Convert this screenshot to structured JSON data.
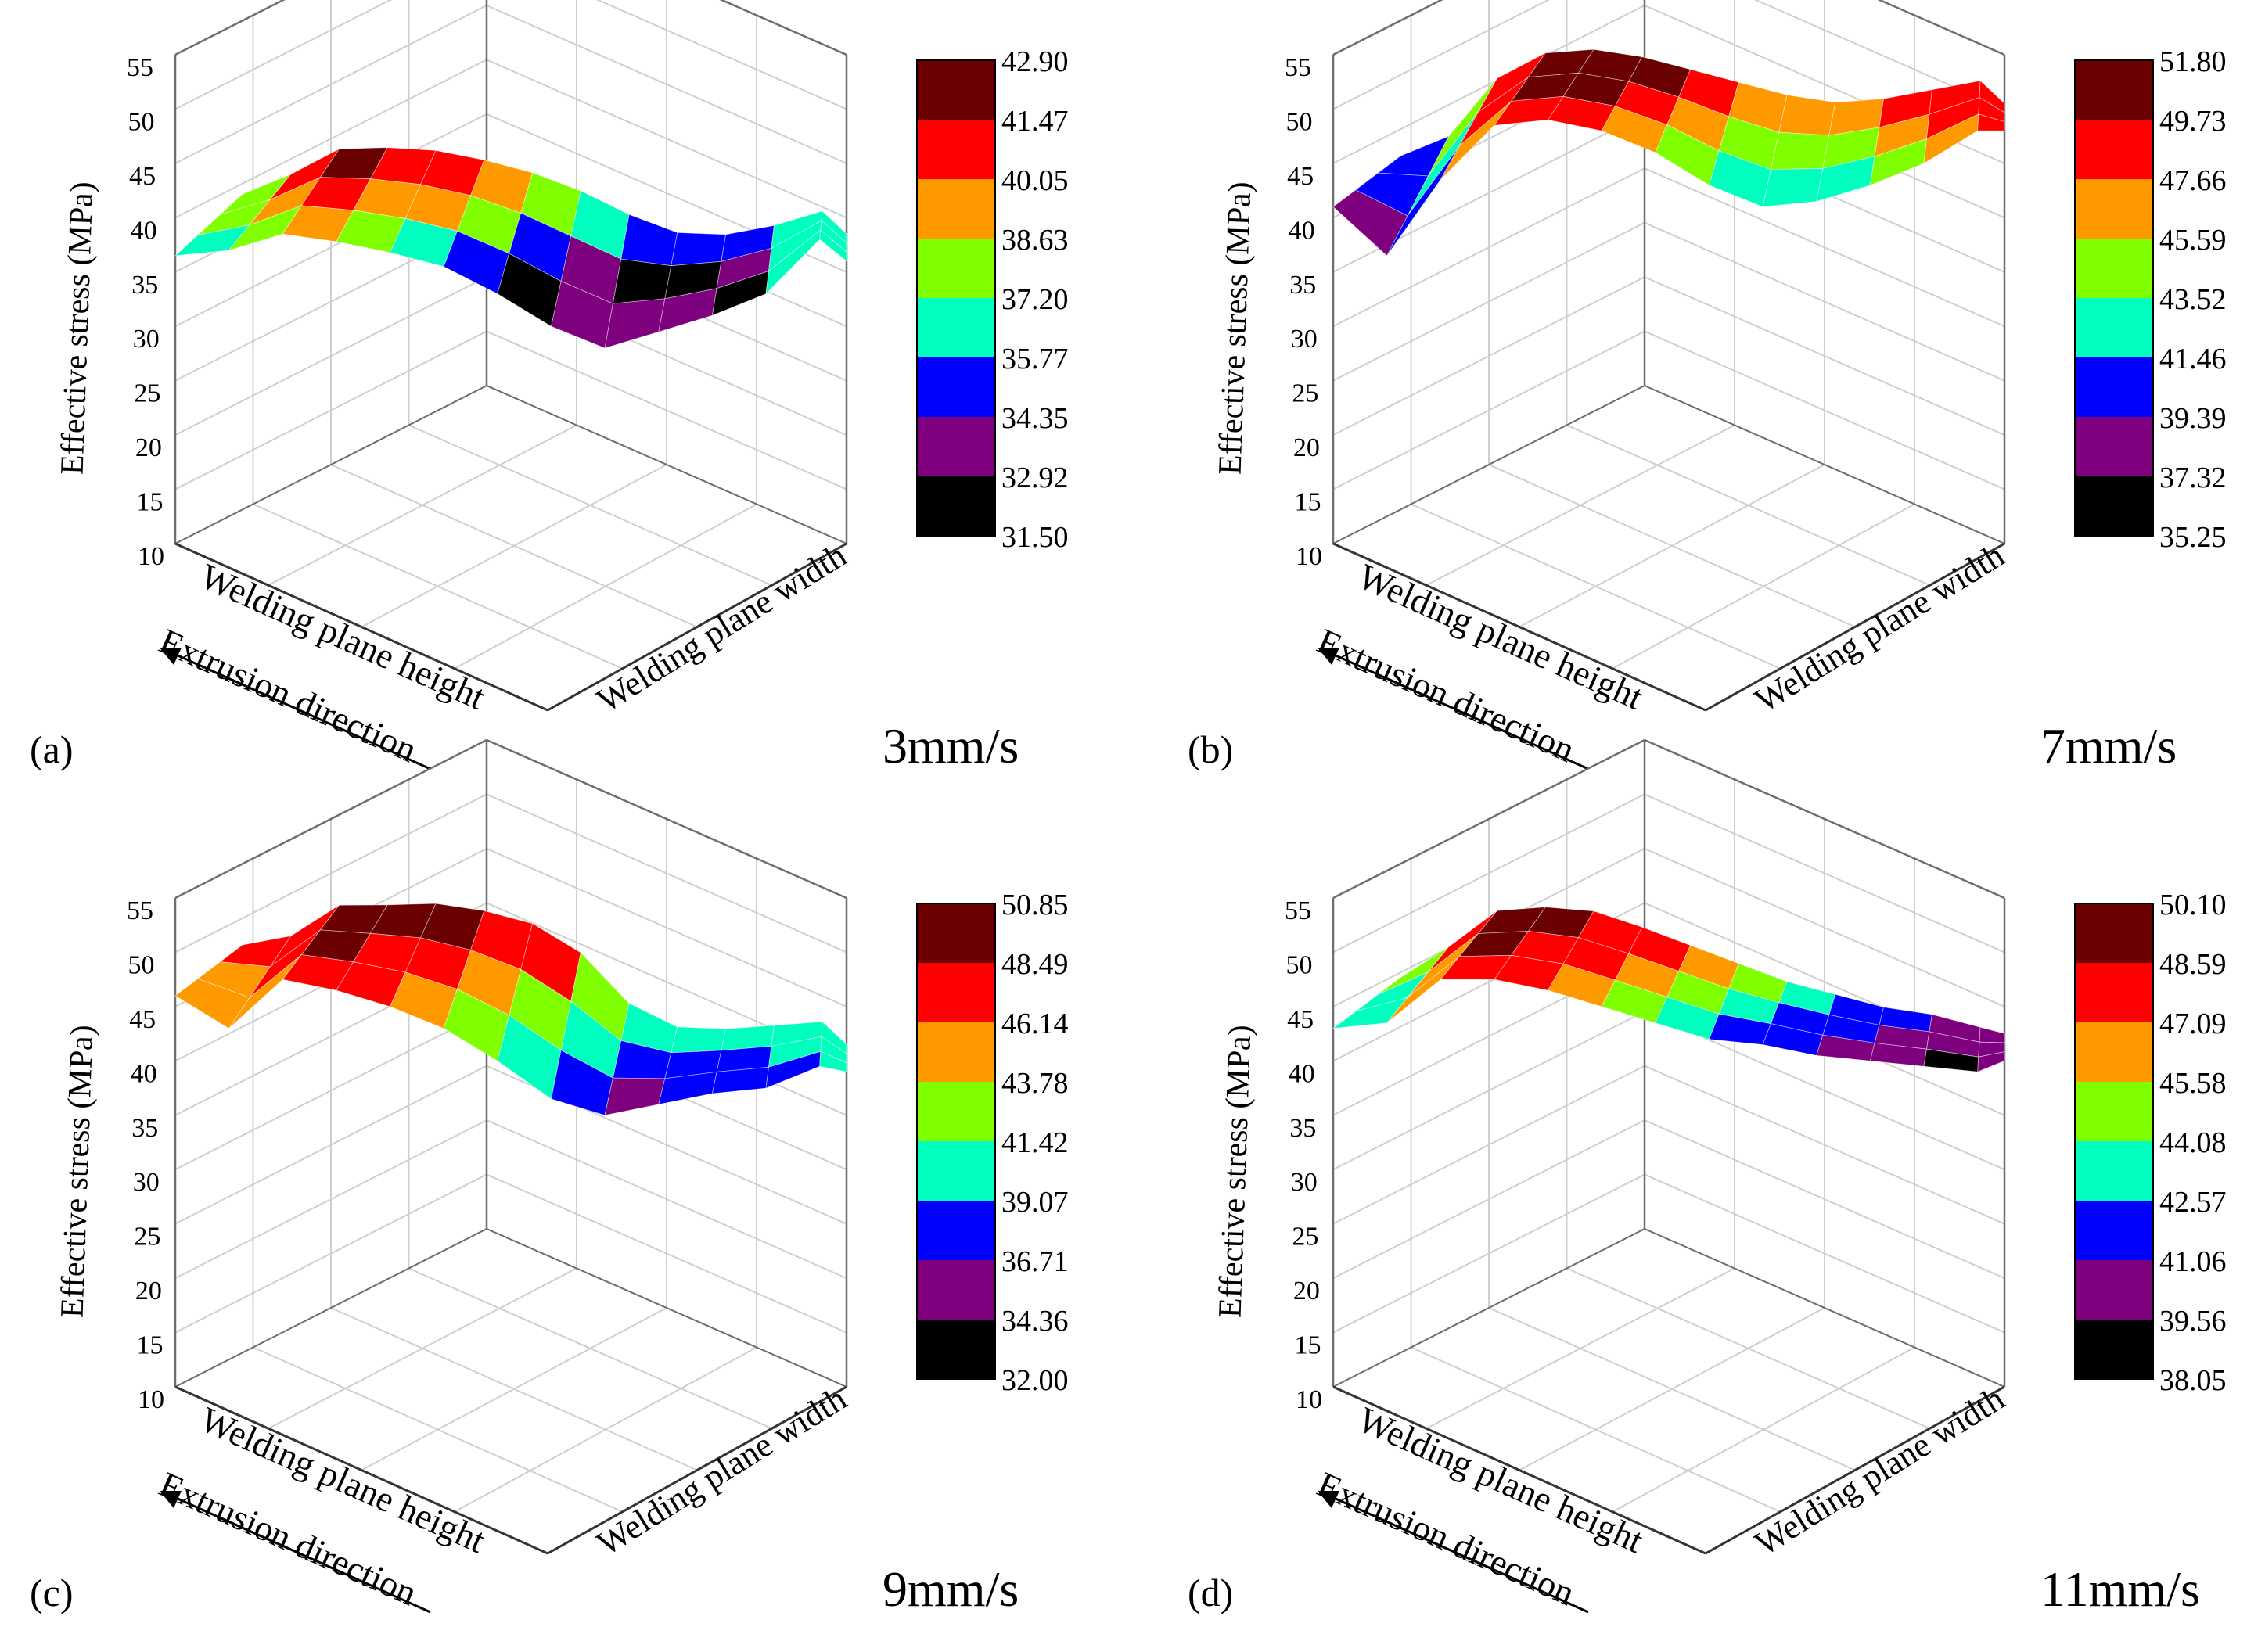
{
  "figure": {
    "panel_count": 4
  },
  "chart_data": [
    {
      "type": "surface3d",
      "panel_label": "(a)",
      "speed_label": "3mm/s",
      "zlabel": "Effective stress (MPa)",
      "xlabel": "Welding plane width",
      "ylabel": "Welding plane height",
      "direction_label": "Extrusion direction",
      "zlim": [
        10,
        55
      ],
      "zticks": [
        "10",
        "15",
        "20",
        "25",
        "30",
        "35",
        "40",
        "45",
        "50",
        "55"
      ],
      "colorbar": {
        "levels": [
          "42.90",
          "41.47",
          "40.05",
          "38.63",
          "37.20",
          "35.77",
          "34.35",
          "32.92",
          "31.50"
        ],
        "colors": [
          "#6b0000",
          "#ff0000",
          "#ff9900",
          "#7fff00",
          "#00ffbf",
          "#0000ff",
          "#7f007f",
          "#000000"
        ]
      },
      "surface": {
        "width_positions": [
          0,
          0.08,
          0.16,
          0.24,
          0.32,
          0.4,
          0.48,
          0.56,
          0.64,
          0.72,
          0.8,
          0.88,
          0.96,
          1.0
        ],
        "front_edge": [
          36.5,
          37.0,
          38.5,
          37.8,
          36.8,
          35.5,
          33.0,
          30.0,
          28.0,
          29.5,
          31.0,
          33.0,
          38.0,
          36.0
        ],
        "back_edge": [
          37.5,
          39.5,
          42.0,
          42.3,
          42.2,
          41.5,
          40.5,
          39.0,
          37.0,
          35.5,
          35.5,
          36.5,
          38.0,
          36.0
        ]
      }
    },
    {
      "type": "surface3d",
      "panel_label": "(b)",
      "speed_label": "7mm/s",
      "zlabel": "Effective stress (MPa)",
      "xlabel": "Welding plane width",
      "ylabel": "Welding plane height",
      "direction_label": "Extrusion direction",
      "zlim": [
        10,
        55
      ],
      "zticks": [
        "10",
        "15",
        "20",
        "25",
        "30",
        "35",
        "40",
        "45",
        "50",
        "55"
      ],
      "colorbar": {
        "levels": [
          "51.80",
          "49.73",
          "47.66",
          "45.59",
          "43.52",
          "41.46",
          "39.39",
          "37.32",
          "35.25"
        ],
        "colors": [
          "#6b0000",
          "#ff0000",
          "#ff9900",
          "#7fff00",
          "#00ffbf",
          "#0000ff",
          "#7f007f",
          "#000000"
        ]
      },
      "surface": {
        "width_positions": [
          0,
          0.08,
          0.16,
          0.24,
          0.32,
          0.4,
          0.48,
          0.56,
          0.64,
          0.72,
          0.8,
          0.88,
          0.96,
          1.0
        ],
        "front_edge": [
          41.0,
          36.5,
          43.5,
          48.5,
          49.0,
          48.0,
          46.0,
          43.0,
          41.0,
          41.5,
          43.0,
          45.0,
          48.0,
          48.0
        ],
        "back_edge": [
          41.0,
          43.0,
          48.5,
          51.0,
          51.5,
          51.0,
          50.0,
          49.0,
          48.0,
          47.5,
          48.0,
          49.0,
          50.0,
          48.0
        ]
      }
    },
    {
      "type": "surface3d",
      "panel_label": "(c)",
      "speed_label": "9mm/s",
      "zlabel": "Effective stress (MPa)",
      "xlabel": "Welding plane width",
      "ylabel": "Welding plane height",
      "direction_label": "Extrusion direction",
      "zlim": [
        10,
        55
      ],
      "zticks": [
        "10",
        "15",
        "20",
        "25",
        "30",
        "35",
        "40",
        "45",
        "50",
        "55"
      ],
      "colorbar": {
        "levels": [
          "50.85",
          "48.49",
          "46.14",
          "43.78",
          "41.42",
          "39.07",
          "36.71",
          "34.36",
          "32.00"
        ],
        "colors": [
          "#6b0000",
          "#ff0000",
          "#ff9900",
          "#7fff00",
          "#00ffbf",
          "#0000ff",
          "#7f007f",
          "#000000"
        ]
      },
      "surface": {
        "width_positions": [
          0,
          0.08,
          0.16,
          0.24,
          0.32,
          0.4,
          0.48,
          0.56,
          0.64,
          0.72,
          0.8,
          0.88,
          0.96,
          1.0
        ],
        "front_edge": [
          46.0,
          43.0,
          47.5,
          46.5,
          45.0,
          43.0,
          40.0,
          36.5,
          35.0,
          36.0,
          37.0,
          37.5,
          39.5,
          39.0
        ],
        "back_edge": [
          46.0,
          47.0,
          50.0,
          50.2,
          50.5,
          50.0,
          49.0,
          46.5,
          42.0,
          40.0,
          40.0,
          40.5,
          41.0,
          39.0
        ]
      }
    },
    {
      "type": "surface3d",
      "panel_label": "(d)",
      "speed_label": "11mm/s",
      "zlabel": "Effective stress (MPa)",
      "xlabel": "Welding plane width",
      "ylabel": "Welding plane height",
      "direction_label": "Extrusion direction",
      "zlim": [
        10,
        55
      ],
      "zticks": [
        "10",
        "15",
        "20",
        "25",
        "30",
        "35",
        "40",
        "45",
        "50",
        "55"
      ],
      "colorbar": {
        "levels": [
          "50.10",
          "48.59",
          "47.09",
          "45.58",
          "44.08",
          "42.57",
          "41.06",
          "39.56",
          "38.05"
        ],
        "colors": [
          "#6b0000",
          "#ff0000",
          "#ff9900",
          "#7fff00",
          "#00ffbf",
          "#0000ff",
          "#7f007f",
          "#000000"
        ]
      },
      "surface": {
        "width_positions": [
          0,
          0.08,
          0.16,
          0.24,
          0.32,
          0.4,
          0.48,
          0.56,
          0.64,
          0.72,
          0.8,
          0.88,
          0.96,
          1.0
        ],
        "front_edge": [
          43.0,
          43.5,
          47.5,
          47.5,
          46.5,
          45.0,
          43.5,
          42.0,
          41.5,
          40.5,
          40.0,
          39.5,
          39.0,
          40.0
        ],
        "back_edge": [
          43.0,
          46.0,
          49.5,
          50.0,
          49.8,
          48.5,
          47.0,
          45.5,
          44.0,
          43.0,
          42.0,
          41.5,
          40.5,
          40.0
        ]
      }
    }
  ]
}
